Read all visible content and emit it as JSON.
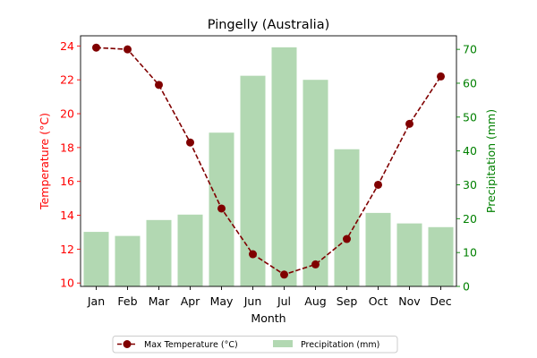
{
  "chart_data": {
    "type": "bar",
    "title": "Pingelly (Australia)",
    "xlabel": "Month",
    "ylabel_left": "Temperature (°C)",
    "ylabel_right": "Precipitation (mm)",
    "categories": [
      "Jan",
      "Feb",
      "Mar",
      "Apr",
      "May",
      "Jun",
      "Jul",
      "Aug",
      "Sep",
      "Oct",
      "Nov",
      "Dec"
    ],
    "series": [
      {
        "name": "Max Temperature (°C)",
        "type": "line",
        "axis": "left",
        "values": [
          23.9,
          23.8,
          21.7,
          18.3,
          14.4,
          11.7,
          10.5,
          11.1,
          12.6,
          15.8,
          19.4,
          22.2
        ]
      },
      {
        "name": "Precipitation (mm)",
        "type": "bar",
        "axis": "right",
        "values": [
          16.1,
          14.9,
          19.6,
          21.2,
          45.4,
          62.2,
          70.6,
          61.0,
          40.5,
          21.7,
          18.6,
          17.5
        ]
      }
    ],
    "ylim_left": [
      9.8,
      24.6
    ],
    "ylim_right": [
      0,
      74
    ],
    "yticks_left": [
      10,
      12,
      14,
      16,
      18,
      20,
      22,
      24
    ],
    "yticks_right": [
      0,
      10,
      20,
      30,
      40,
      50,
      60,
      70
    ],
    "grid": false,
    "legend_placement": "bottom-center",
    "colors": {
      "line": "#800000",
      "bar": "#b2d8b2",
      "left_axis": "#ff0000",
      "right_axis": "#008000",
      "text": "#000000"
    }
  }
}
